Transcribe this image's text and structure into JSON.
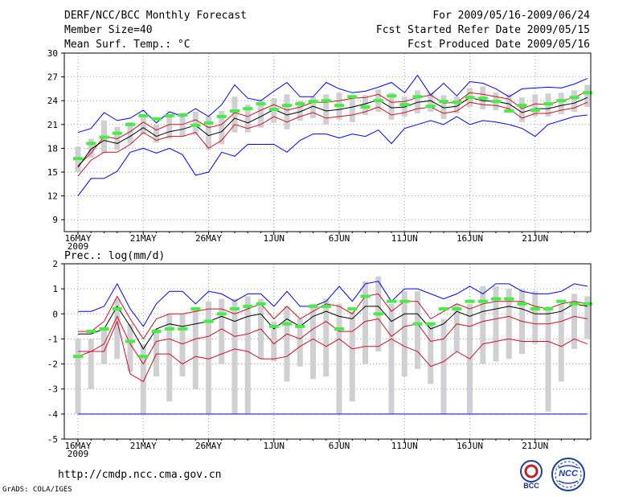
{
  "header": {
    "left": [
      "DERF/NCC/BCC Monthly Forecast",
      "Member Size=40",
      "Mean Surf. Temp.: °C"
    ],
    "right": [
      "For 2009/05/16-2009/06/24",
      "Fcst Started Refer Date 2009/05/15",
      "Fcst Produced Date 2009/05/16"
    ]
  },
  "footer": {
    "url": "http://cmdp.ncc.cma.gov.cn",
    "credit": "GrADS: COLA/IGES",
    "logo_bcc": "BCC",
    "logo_ncc": "NCC"
  },
  "chart_data": [
    {
      "type": "line",
      "title": "Mean Surf. Temp.: °C",
      "x_tick_labels": [
        "16MAY",
        "21MAY",
        "26MAY",
        "1JUN",
        "6JUN",
        "11JUN",
        "16JUN",
        "21JUN"
      ],
      "x_tick_days": [
        0,
        5,
        10,
        15,
        20,
        25,
        30,
        35
      ],
      "year_label": "2009",
      "ylim": [
        7.5,
        30
      ],
      "yticks": [
        9,
        12,
        15,
        18,
        21,
        24,
        27,
        30
      ],
      "days": 40,
      "series": [
        {
          "name": "max",
          "color": "#0000ff",
          "values": [
            20.0,
            20.5,
            22.5,
            21.5,
            21.8,
            22.8,
            21.2,
            22.6,
            22.0,
            23.0,
            22.0,
            23.5,
            26.0,
            24.3,
            24.0,
            25.2,
            26.3,
            24.5,
            24.5,
            26.3,
            25.5,
            25.0,
            25.2,
            25.7,
            26.3,
            25.0,
            27.2,
            24.7,
            26.2,
            24.6,
            26.4,
            26.2,
            25.5,
            24.5,
            25.5,
            25.6,
            25.7,
            25.6,
            26.1,
            26.8
          ]
        },
        {
          "name": "upper",
          "color": "#d01020",
          "values": [
            15.8,
            17.4,
            19.5,
            19.2,
            20.1,
            21.3,
            20.3,
            21.0,
            21.0,
            21.6,
            20.6,
            21.0,
            22.5,
            22.0,
            22.8,
            23.5,
            22.8,
            23.2,
            23.8,
            23.8,
            24.0,
            24.3,
            24.4,
            24.8,
            23.8,
            23.9,
            24.4,
            24.7,
            23.7,
            23.8,
            25.0,
            24.8,
            24.5,
            24.2,
            23.0,
            23.6,
            23.5,
            24.0,
            24.4,
            25.2
          ]
        },
        {
          "name": "mean",
          "color": "#000000",
          "values": [
            15.6,
            17.9,
            19.0,
            18.6,
            19.5,
            20.6,
            19.5,
            20.1,
            20.4,
            20.9,
            19.6,
            20.1,
            21.8,
            21.2,
            22.0,
            22.9,
            22.2,
            22.6,
            23.3,
            22.7,
            22.9,
            23.2,
            23.6,
            24.1,
            23.1,
            23.2,
            23.8,
            24.0,
            23.1,
            23.3,
            24.4,
            24.0,
            23.9,
            23.6,
            22.5,
            23.0,
            23.0,
            23.4,
            23.7,
            24.4
          ]
        },
        {
          "name": "lower",
          "color": "#d01020",
          "values": [
            14.5,
            16.5,
            17.5,
            17.5,
            18.5,
            20.0,
            19.0,
            19.5,
            19.5,
            20.0,
            18.0,
            19.0,
            21.0,
            20.5,
            21.0,
            22.0,
            21.3,
            22.0,
            22.5,
            21.8,
            22.0,
            22.2,
            22.6,
            23.2,
            22.2,
            22.5,
            23.0,
            23.2,
            22.4,
            22.7,
            23.8,
            23.5,
            23.4,
            23.0,
            21.8,
            22.4,
            22.4,
            22.8,
            23.1,
            23.8
          ]
        },
        {
          "name": "min",
          "color": "#0000ff",
          "values": [
            12.0,
            14.2,
            14.2,
            15.1,
            17.5,
            18.0,
            17.4,
            18.0,
            17.2,
            14.6,
            15.0,
            17.5,
            17.0,
            18.5,
            18.5,
            18.5,
            17.5,
            19.0,
            19.8,
            19.8,
            19.3,
            19.8,
            19.5,
            20.3,
            18.6,
            20.5,
            21.0,
            21.5,
            21.0,
            22.0,
            21.0,
            21.5,
            21.3,
            21.0,
            20.5,
            19.5,
            21.0,
            21.5,
            22.0,
            22.2
          ]
        }
      ],
      "box_low": [
        15.0,
        16.8,
        17.4,
        17.8,
        18.6,
        19.8,
        18.7,
        19.2,
        19.5,
        19.7,
        17.8,
        18.5,
        20.0,
        20.0,
        20.6,
        21.2,
        20.4,
        21.5,
        21.8,
        21.0,
        21.6,
        21.3,
        22.2,
        22.6,
        21.6,
        22.0,
        22.4,
        22.6,
        21.7,
        22.4,
        23.2,
        22.9,
        22.8,
        22.8,
        21.3,
        22.0,
        22.0,
        22.3,
        22.6,
        23.2
      ],
      "box_high": [
        18.2,
        19.2,
        21.5,
        20.7,
        21.3,
        22.3,
        21.0,
        22.0,
        22.3,
        22.6,
        22.0,
        22.7,
        24.5,
        23.5,
        24.0,
        24.3,
        24.8,
        24.0,
        24.5,
        24.8,
        25.0,
        24.7,
        24.7,
        25.4,
        25.0,
        24.5,
        25.3,
        25.0,
        24.7,
        24.5,
        25.6,
        25.8,
        25.0,
        24.8,
        24.4,
        24.8,
        24.9,
        25.0,
        25.3,
        26.0
      ],
      "green_marks": [
        16.7,
        18.6,
        19.4,
        19.9,
        21.0,
        22.1,
        21.7,
        22.1,
        22.2,
        20.9,
        21.2,
        22.0,
        22.7,
        23.0,
        23.6,
        22.9,
        23.4,
        23.6,
        23.9,
        24.0,
        23.4,
        24.5,
        23.2,
        24.0,
        24.6,
        23.5,
        24.5,
        23.3,
        23.9,
        23.8,
        24.4,
        24.3,
        23.9,
        22.7,
        23.4,
        22.8,
        23.6,
        24.0,
        24.4,
        25.0
      ]
    },
    {
      "type": "line",
      "title": "Prec.: log(mm/d)",
      "x_tick_labels": [
        "16MAY",
        "21MAY",
        "26MAY",
        "1JUN",
        "6JUN",
        "11JUN",
        "16JUN",
        "21JUN"
      ],
      "x_tick_days": [
        0,
        5,
        10,
        15,
        20,
        25,
        30,
        35
      ],
      "year_label": "2009",
      "ylim": [
        -5,
        2
      ],
      "yticks": [
        -5,
        -4,
        -3,
        -2,
        -1,
        0,
        1,
        2
      ],
      "days": 40,
      "series": [
        {
          "name": "max",
          "color": "#0000ff",
          "values": [
            0.1,
            0.1,
            0.3,
            1.2,
            0.2,
            -0.5,
            0.4,
            0.9,
            0.9,
            0.4,
            0.9,
            0.8,
            0.5,
            0.8,
            0.8,
            0.3,
            0.9,
            0.3,
            0.3,
            0.5,
            1.1,
            0.5,
            1.2,
            1.3,
            0.5,
            1.0,
            1.0,
            0.8,
            0.6,
            0.8,
            1.1,
            0.8,
            1.2,
            1.2,
            0.9,
            0.8,
            0.8,
            0.9,
            1.2,
            1.1
          ]
        },
        {
          "name": "upper",
          "color": "#d01020",
          "values": [
            -0.7,
            -0.7,
            -0.3,
            0.7,
            -0.2,
            -1.0,
            -0.2,
            0.0,
            0.0,
            0.1,
            0.2,
            0.2,
            0.0,
            0.2,
            0.4,
            -0.2,
            0.3,
            -0.2,
            0.1,
            0.4,
            0.3,
            0.0,
            0.7,
            0.8,
            0.1,
            0.5,
            0.5,
            -0.2,
            0.1,
            0.4,
            0.2,
            0.4,
            0.5,
            0.5,
            0.5,
            0.3,
            0.2,
            0.4,
            0.5,
            0.4
          ]
        },
        {
          "name": "mean",
          "color": "#000000",
          "values": [
            -0.8,
            -0.8,
            -0.6,
            0.3,
            -0.5,
            -1.4,
            -0.6,
            -0.4,
            -0.5,
            -0.4,
            -0.3,
            -0.1,
            -0.3,
            -0.1,
            0.0,
            -0.6,
            -0.2,
            -0.5,
            -0.1,
            0.1,
            -0.1,
            -0.2,
            0.3,
            0.3,
            -0.3,
            0.0,
            0.0,
            -0.6,
            -0.4,
            0.1,
            -0.1,
            0.1,
            0.2,
            0.3,
            0.2,
            0.0,
            0.0,
            0.1,
            0.4,
            0.3
          ]
        },
        {
          "name": "lower",
          "color": "#d01020",
          "values": [
            -1.5,
            -1.5,
            -1.2,
            -0.1,
            -1.2,
            -2.0,
            -1.1,
            -1.0,
            -1.2,
            -1.0,
            -0.9,
            -0.6,
            -0.9,
            -0.8,
            -0.6,
            -1.2,
            -0.8,
            -1.0,
            -0.6,
            -0.3,
            -0.7,
            -0.7,
            -0.3,
            -0.2,
            -0.9,
            -0.5,
            -0.4,
            -1.1,
            -1.0,
            -0.4,
            -0.5,
            -0.3,
            -0.2,
            -0.1,
            -0.3,
            -0.4,
            -0.4,
            -0.3,
            -0.1,
            -0.2
          ]
        },
        {
          "name": "min",
          "color": "#d01020",
          "values": [
            -1.7,
            -1.5,
            -1.5,
            -0.3,
            -2.4,
            -2.7,
            -1.6,
            -1.6,
            -2.0,
            -1.7,
            -1.8,
            -1.6,
            -1.4,
            -1.5,
            -1.8,
            -1.8,
            -1.7,
            -1.3,
            -1.0,
            -1.3,
            -1.0,
            -1.4,
            -1.3,
            -1.3,
            -1.0,
            -1.3,
            -1.5,
            -2.1,
            -1.9,
            -1.5,
            -1.8,
            -1.2,
            -1.1,
            -1.0,
            -1.1,
            -1.1,
            -1.1,
            -1.3,
            -1.0,
            -1.2
          ]
        },
        {
          "name": "floor",
          "color": "#0000ff",
          "values": [
            -4,
            -4,
            -4,
            -4,
            -4,
            -4,
            -4,
            -4,
            -4,
            -4,
            -4,
            -4,
            -4,
            -4,
            -4,
            -4,
            -4,
            -4,
            -4,
            -4,
            -4,
            -4,
            -4,
            -4,
            -4,
            -4,
            -4,
            -4,
            -4,
            -4,
            -4,
            -4,
            -4,
            -4,
            -4,
            -4,
            -4,
            -4,
            -4,
            -4
          ]
        }
      ],
      "box_low": [
        -4.0,
        -3.0,
        -2.0,
        -1.8,
        -2.3,
        -4.0,
        -2.5,
        -3.5,
        -2.5,
        -3.0,
        -4.0,
        -2.0,
        -4.0,
        -4.0,
        -1.8,
        -1.9,
        -2.7,
        -2.1,
        -2.6,
        -2.5,
        -4.0,
        -3.5,
        -2.0,
        -1.5,
        -4.0,
        -2.5,
        -2.2,
        -2.8,
        -4.0,
        -1.5,
        -4.0,
        -2.0,
        -1.9,
        -1.8,
        -1.6,
        -1.2,
        -3.9,
        -2.7,
        -1.4,
        -1.0
      ],
      "box_high": [
        -1.0,
        -1.0,
        -0.6,
        0.6,
        -0.4,
        -1.2,
        -0.6,
        0.0,
        0.0,
        0.2,
        0.5,
        0.6,
        0.6,
        0.7,
        0.6,
        -0.3,
        0.3,
        -0.2,
        0.4,
        0.6,
        0.4,
        0.1,
        1.3,
        1.5,
        0.4,
        0.9,
        0.9,
        -0.4,
        -0.2,
        0.4,
        0.4,
        1.1,
        1.1,
        1.0,
        1.0,
        0.9,
        0.3,
        0.4,
        0.8,
        0.7
      ],
      "green_marks": [
        -1.7,
        -0.7,
        -0.6,
        0.2,
        -1.1,
        -1.7,
        -0.7,
        -0.6,
        -0.6,
        0.2,
        -0.3,
        0.0,
        0.2,
        0.3,
        0.4,
        -0.5,
        -0.4,
        -0.5,
        0.3,
        0.3,
        -0.6,
        0.2,
        0.7,
        0.0,
        0.5,
        0.5,
        -0.4,
        -0.4,
        0.2,
        0.2,
        0.5,
        0.5,
        0.6,
        0.6,
        0.4,
        0.2,
        0.2,
        0.5,
        0.4,
        0.4
      ]
    }
  ]
}
